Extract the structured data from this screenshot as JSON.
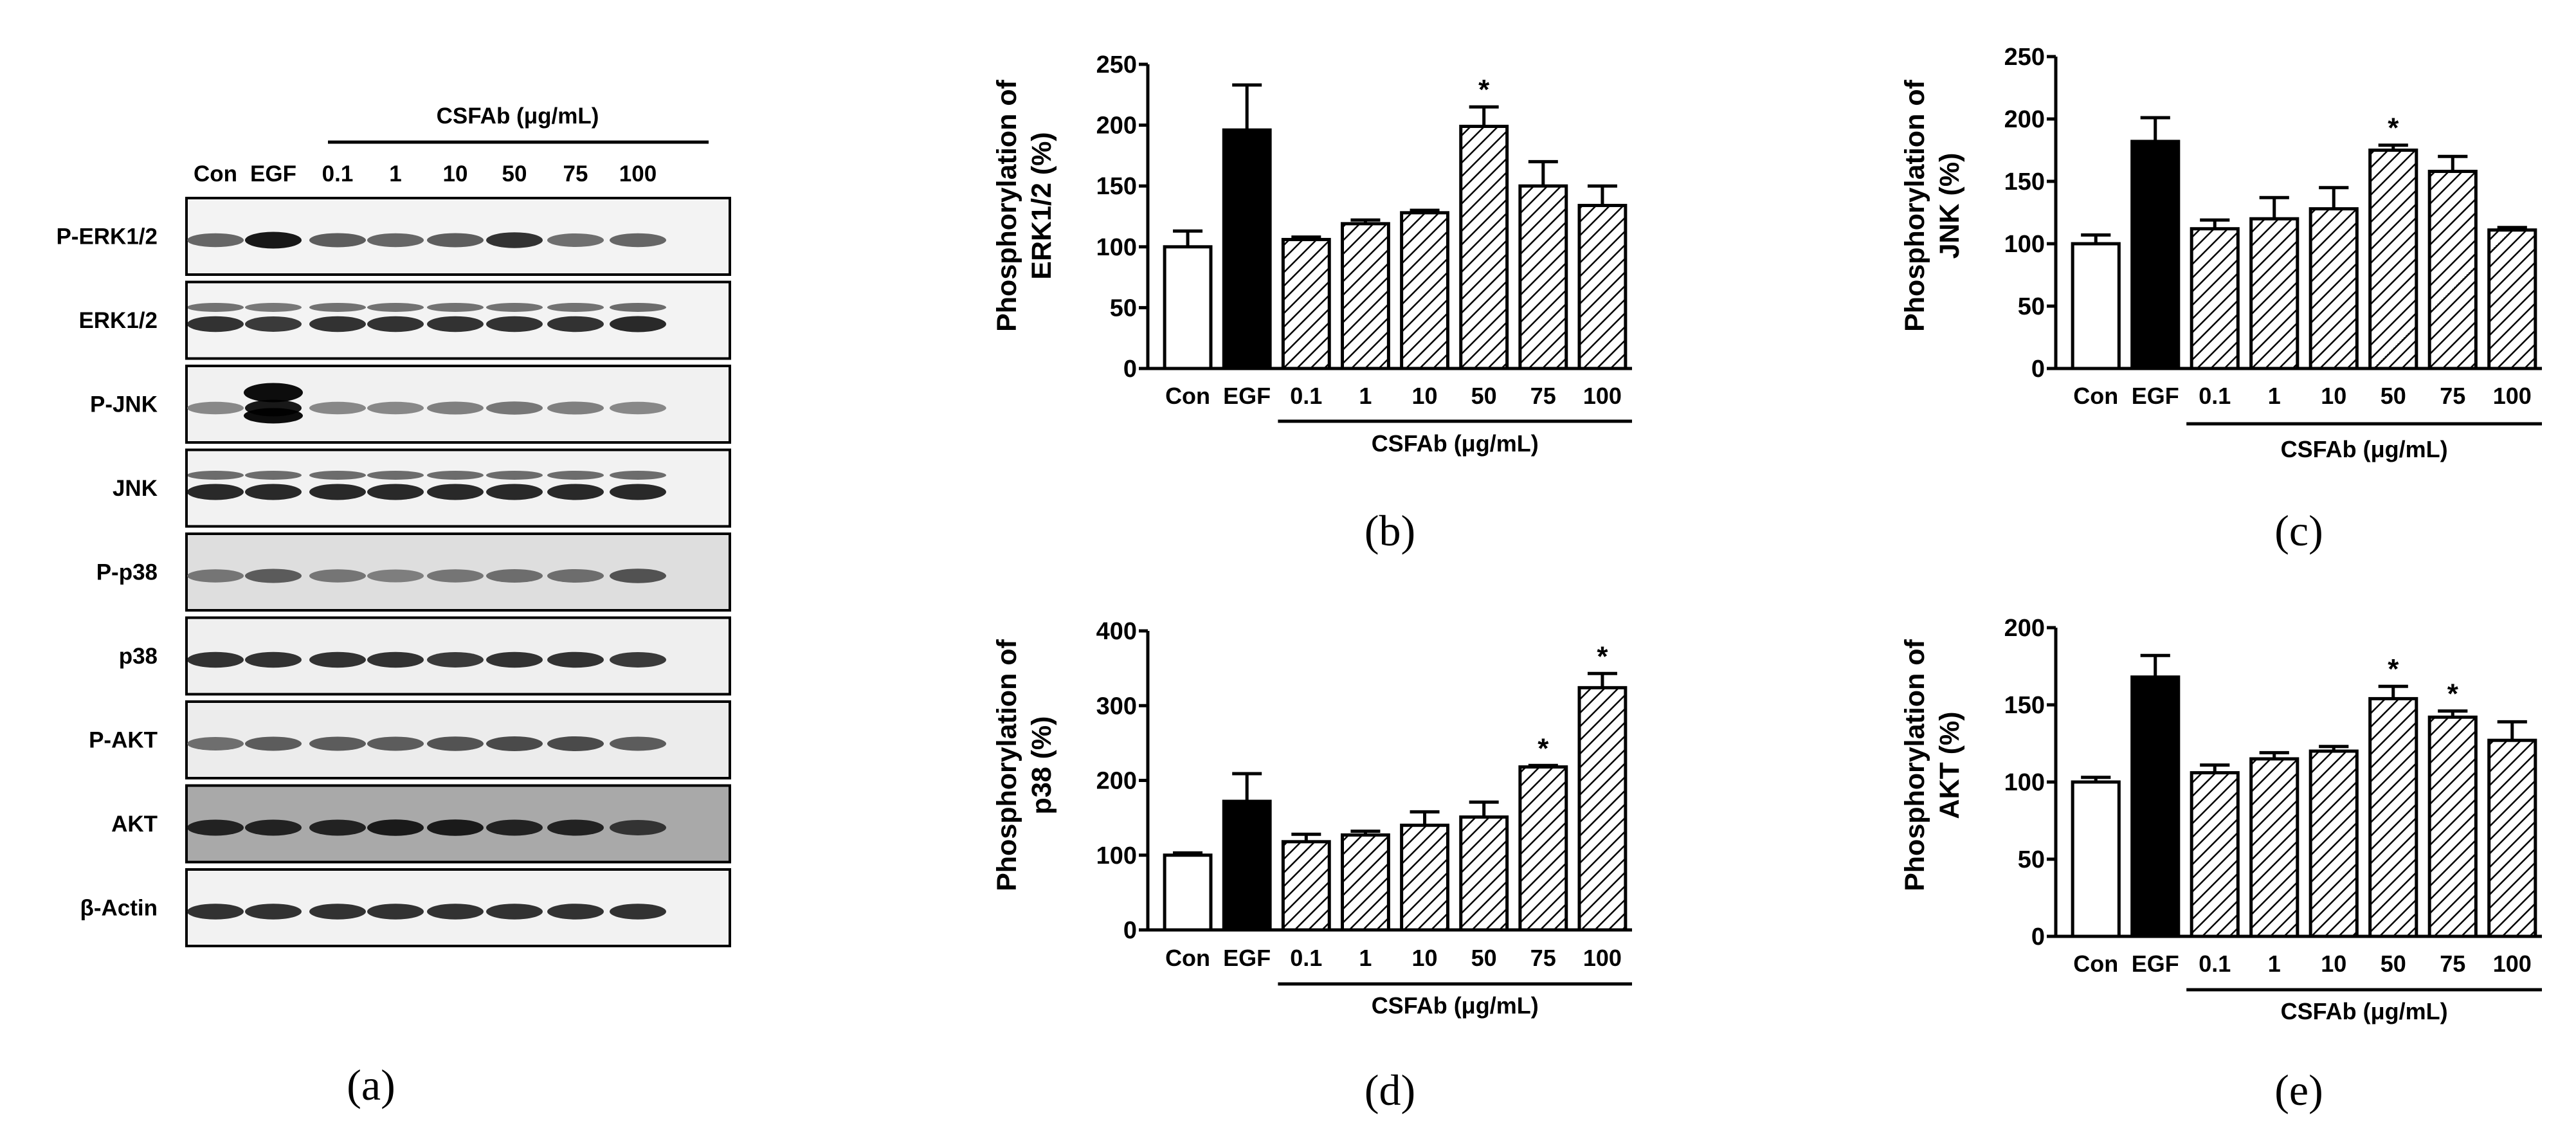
{
  "panel_a": {
    "caption": "(a)",
    "treatment_label": "CSFAb (μg/mL)",
    "lanes": [
      "Con",
      "EGF",
      "0.1",
      "1",
      "10",
      "50",
      "75",
      "100"
    ],
    "blot_rows": [
      {
        "label": "P-ERK1/2",
        "bg": "#f3f3f3"
      },
      {
        "label": "ERK1/2",
        "bg": "#f3f3f3"
      },
      {
        "label": "P-JNK",
        "bg": "#f1f1f1"
      },
      {
        "label": "JNK",
        "bg": "#f2f2f2"
      },
      {
        "label": "P-p38",
        "bg": "#dedede"
      },
      {
        "label": "p38",
        "bg": "#efefef"
      },
      {
        "label": "P-AKT",
        "bg": "#ececec"
      },
      {
        "label": "AKT",
        "bg": "#a9a9a9"
      },
      {
        "label": "β-Actin",
        "bg": "#f2f2f2"
      }
    ]
  },
  "chart_data": [
    {
      "type": "bar",
      "panel": "b",
      "caption": "(b)",
      "ylabel_line1": "Phosphorylation of",
      "ylabel_line2": "ERK1/2 (%)",
      "group_label": "CSFAb  (μg/mL)",
      "categories": [
        "Con",
        "EGF",
        "0.1",
        "1",
        "10",
        "50",
        "75",
        "100"
      ],
      "values": [
        100,
        196,
        106,
        119,
        128,
        199,
        150,
        134
      ],
      "errors": [
        13,
        37,
        2,
        3,
        2,
        16,
        20,
        16
      ],
      "significant": [
        false,
        false,
        false,
        false,
        false,
        true,
        false,
        false
      ],
      "significance_mark": "*",
      "ylim": [
        0,
        250
      ],
      "yticks": [
        0,
        50,
        100,
        150,
        200,
        250
      ],
      "styles": [
        "white",
        "black",
        "hatch",
        "hatch",
        "hatch",
        "hatch",
        "hatch",
        "hatch"
      ]
    },
    {
      "type": "bar",
      "panel": "c",
      "caption": "(c)",
      "ylabel_line1": "Phosphorylation of",
      "ylabel_line2": "JNK (%)",
      "group_label": "CSFAb  (μg/mL)",
      "categories": [
        "Con",
        "EGF",
        "0.1",
        "1",
        "10",
        "50",
        "75",
        "100"
      ],
      "values": [
        100,
        182,
        112,
        120,
        128,
        175,
        158,
        111
      ],
      "errors": [
        7,
        19,
        7,
        17,
        17,
        4,
        12,
        2
      ],
      "significant": [
        false,
        false,
        false,
        false,
        false,
        true,
        false,
        false
      ],
      "significance_mark": "*",
      "ylim": [
        0,
        250
      ],
      "yticks": [
        0,
        50,
        100,
        150,
        200,
        250
      ],
      "styles": [
        "white",
        "black",
        "hatch",
        "hatch",
        "hatch",
        "hatch",
        "hatch",
        "hatch"
      ]
    },
    {
      "type": "bar",
      "panel": "d",
      "caption": "(d)",
      "ylabel_line1": "Phosphorylation of",
      "ylabel_line2": "p38 (%)",
      "group_label": "CSFAb  (μg/mL)",
      "categories": [
        "Con",
        "EGF",
        "0.1",
        "1",
        "10",
        "50",
        "75",
        "100"
      ],
      "values": [
        100,
        172,
        118,
        127,
        140,
        151,
        218,
        324
      ],
      "errors": [
        3,
        37,
        10,
        5,
        18,
        20,
        2,
        19
      ],
      "significant": [
        false,
        false,
        false,
        false,
        false,
        false,
        true,
        true
      ],
      "significance_mark": "*",
      "ylim": [
        0,
        400
      ],
      "yticks": [
        0,
        100,
        200,
        300,
        400
      ],
      "styles": [
        "white",
        "black",
        "hatch",
        "hatch",
        "hatch",
        "hatch",
        "hatch",
        "hatch"
      ]
    },
    {
      "type": "bar",
      "panel": "e",
      "caption": "(e)",
      "ylabel_line1": "Phosphorylation of",
      "ylabel_line2": "AKT (%)",
      "group_label": "CSFAb  (μg/mL)",
      "categories": [
        "Con",
        "EGF",
        "0.1",
        "1",
        "10",
        "50",
        "75",
        "100"
      ],
      "values": [
        100,
        168,
        106,
        115,
        120,
        154,
        142,
        127
      ],
      "errors": [
        3,
        14,
        5,
        4,
        3,
        8,
        4,
        12
      ],
      "significant": [
        false,
        false,
        false,
        false,
        false,
        true,
        true,
        false
      ],
      "significance_mark": "*",
      "ylim": [
        0,
        200
      ],
      "yticks": [
        0,
        50,
        100,
        150,
        200
      ],
      "styles": [
        "white",
        "black",
        "hatch",
        "hatch",
        "hatch",
        "hatch",
        "hatch",
        "hatch"
      ]
    }
  ]
}
